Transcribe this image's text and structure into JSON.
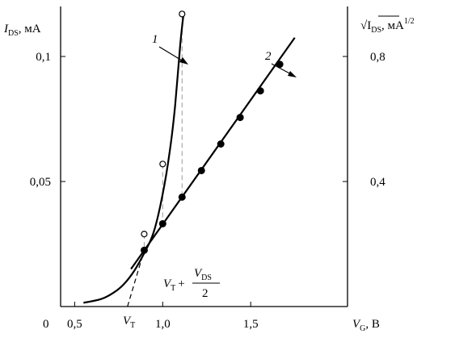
{
  "chart_data": {
    "type": "line",
    "x_axis": {
      "label": "V",
      "label_sub": "G",
      "label_unit": ", В",
      "range": [
        0.42,
        2.05
      ],
      "ticks": [
        {
          "v": 0.5,
          "label": "0,5"
        },
        {
          "v": 1.0,
          "label": "1,0"
        },
        {
          "v": 1.5,
          "label": "1,5"
        }
      ],
      "origin_label": "0"
    },
    "y_axis_left": {
      "label": "I",
      "label_sub": "DS",
      "label_unit": ", мА",
      "range": [
        0,
        0.12
      ],
      "ticks": [
        {
          "v": 0.05,
          "label": "0,05"
        },
        {
          "v": 0.1,
          "label": "0,1"
        }
      ]
    },
    "y_axis_right": {
      "label": "√I",
      "label_sub": "DS",
      "label_unit": ", мА",
      "label_sup": "1/2",
      "range": [
        0,
        0.96
      ],
      "ticks": [
        {
          "v": 0.4,
          "label": "0,4"
        },
        {
          "v": 0.8,
          "label": "0,8"
        }
      ]
    },
    "series": [
      {
        "name": "1",
        "axis": "left",
        "marker": "open-circle",
        "curve": [
          [
            0.55,
            0.0015
          ],
          [
            0.65,
            0.003
          ],
          [
            0.72,
            0.0055
          ],
          [
            0.78,
            0.009
          ],
          [
            0.84,
            0.0145
          ],
          [
            0.9,
            0.022
          ],
          [
            0.95,
            0.03
          ],
          [
            1.0,
            0.045
          ],
          [
            1.04,
            0.062
          ],
          [
            1.07,
            0.08
          ],
          [
            1.1,
            0.105
          ],
          [
            1.12,
            0.118
          ]
        ],
        "points": [
          [
            0.895,
            0.029
          ],
          [
            1.0,
            0.057
          ],
          [
            1.11,
            0.117
          ]
        ]
      },
      {
        "name": "2",
        "axis": "right",
        "marker": "filled-circle",
        "curve": [
          [
            0.82,
            0.12
          ],
          [
            1.75,
            0.86
          ]
        ],
        "points": [
          [
            0.895,
            0.18
          ],
          [
            1.0,
            0.265
          ],
          [
            1.11,
            0.35
          ],
          [
            1.22,
            0.435
          ],
          [
            1.33,
            0.52
          ],
          [
            1.44,
            0.605
          ],
          [
            1.555,
            0.69
          ],
          [
            1.665,
            0.775
          ]
        ]
      }
    ],
    "tangent": {
      "x": [
        0.8,
        0.895
      ],
      "y_right": [
        0.0,
        0.18
      ]
    },
    "guides": [
      [
        0.895,
        0.029,
        0.18
      ],
      [
        1.0,
        0.057,
        0.265
      ],
      [
        1.11,
        0.117,
        0.35
      ]
    ],
    "annotations": {
      "vt": {
        "label": "V",
        "sub": "T"
      },
      "formula": {
        "v": "V",
        "v_sub": "T",
        "plus": "+",
        "num": "V",
        "num_sub": "DS",
        "den": "2"
      }
    }
  }
}
